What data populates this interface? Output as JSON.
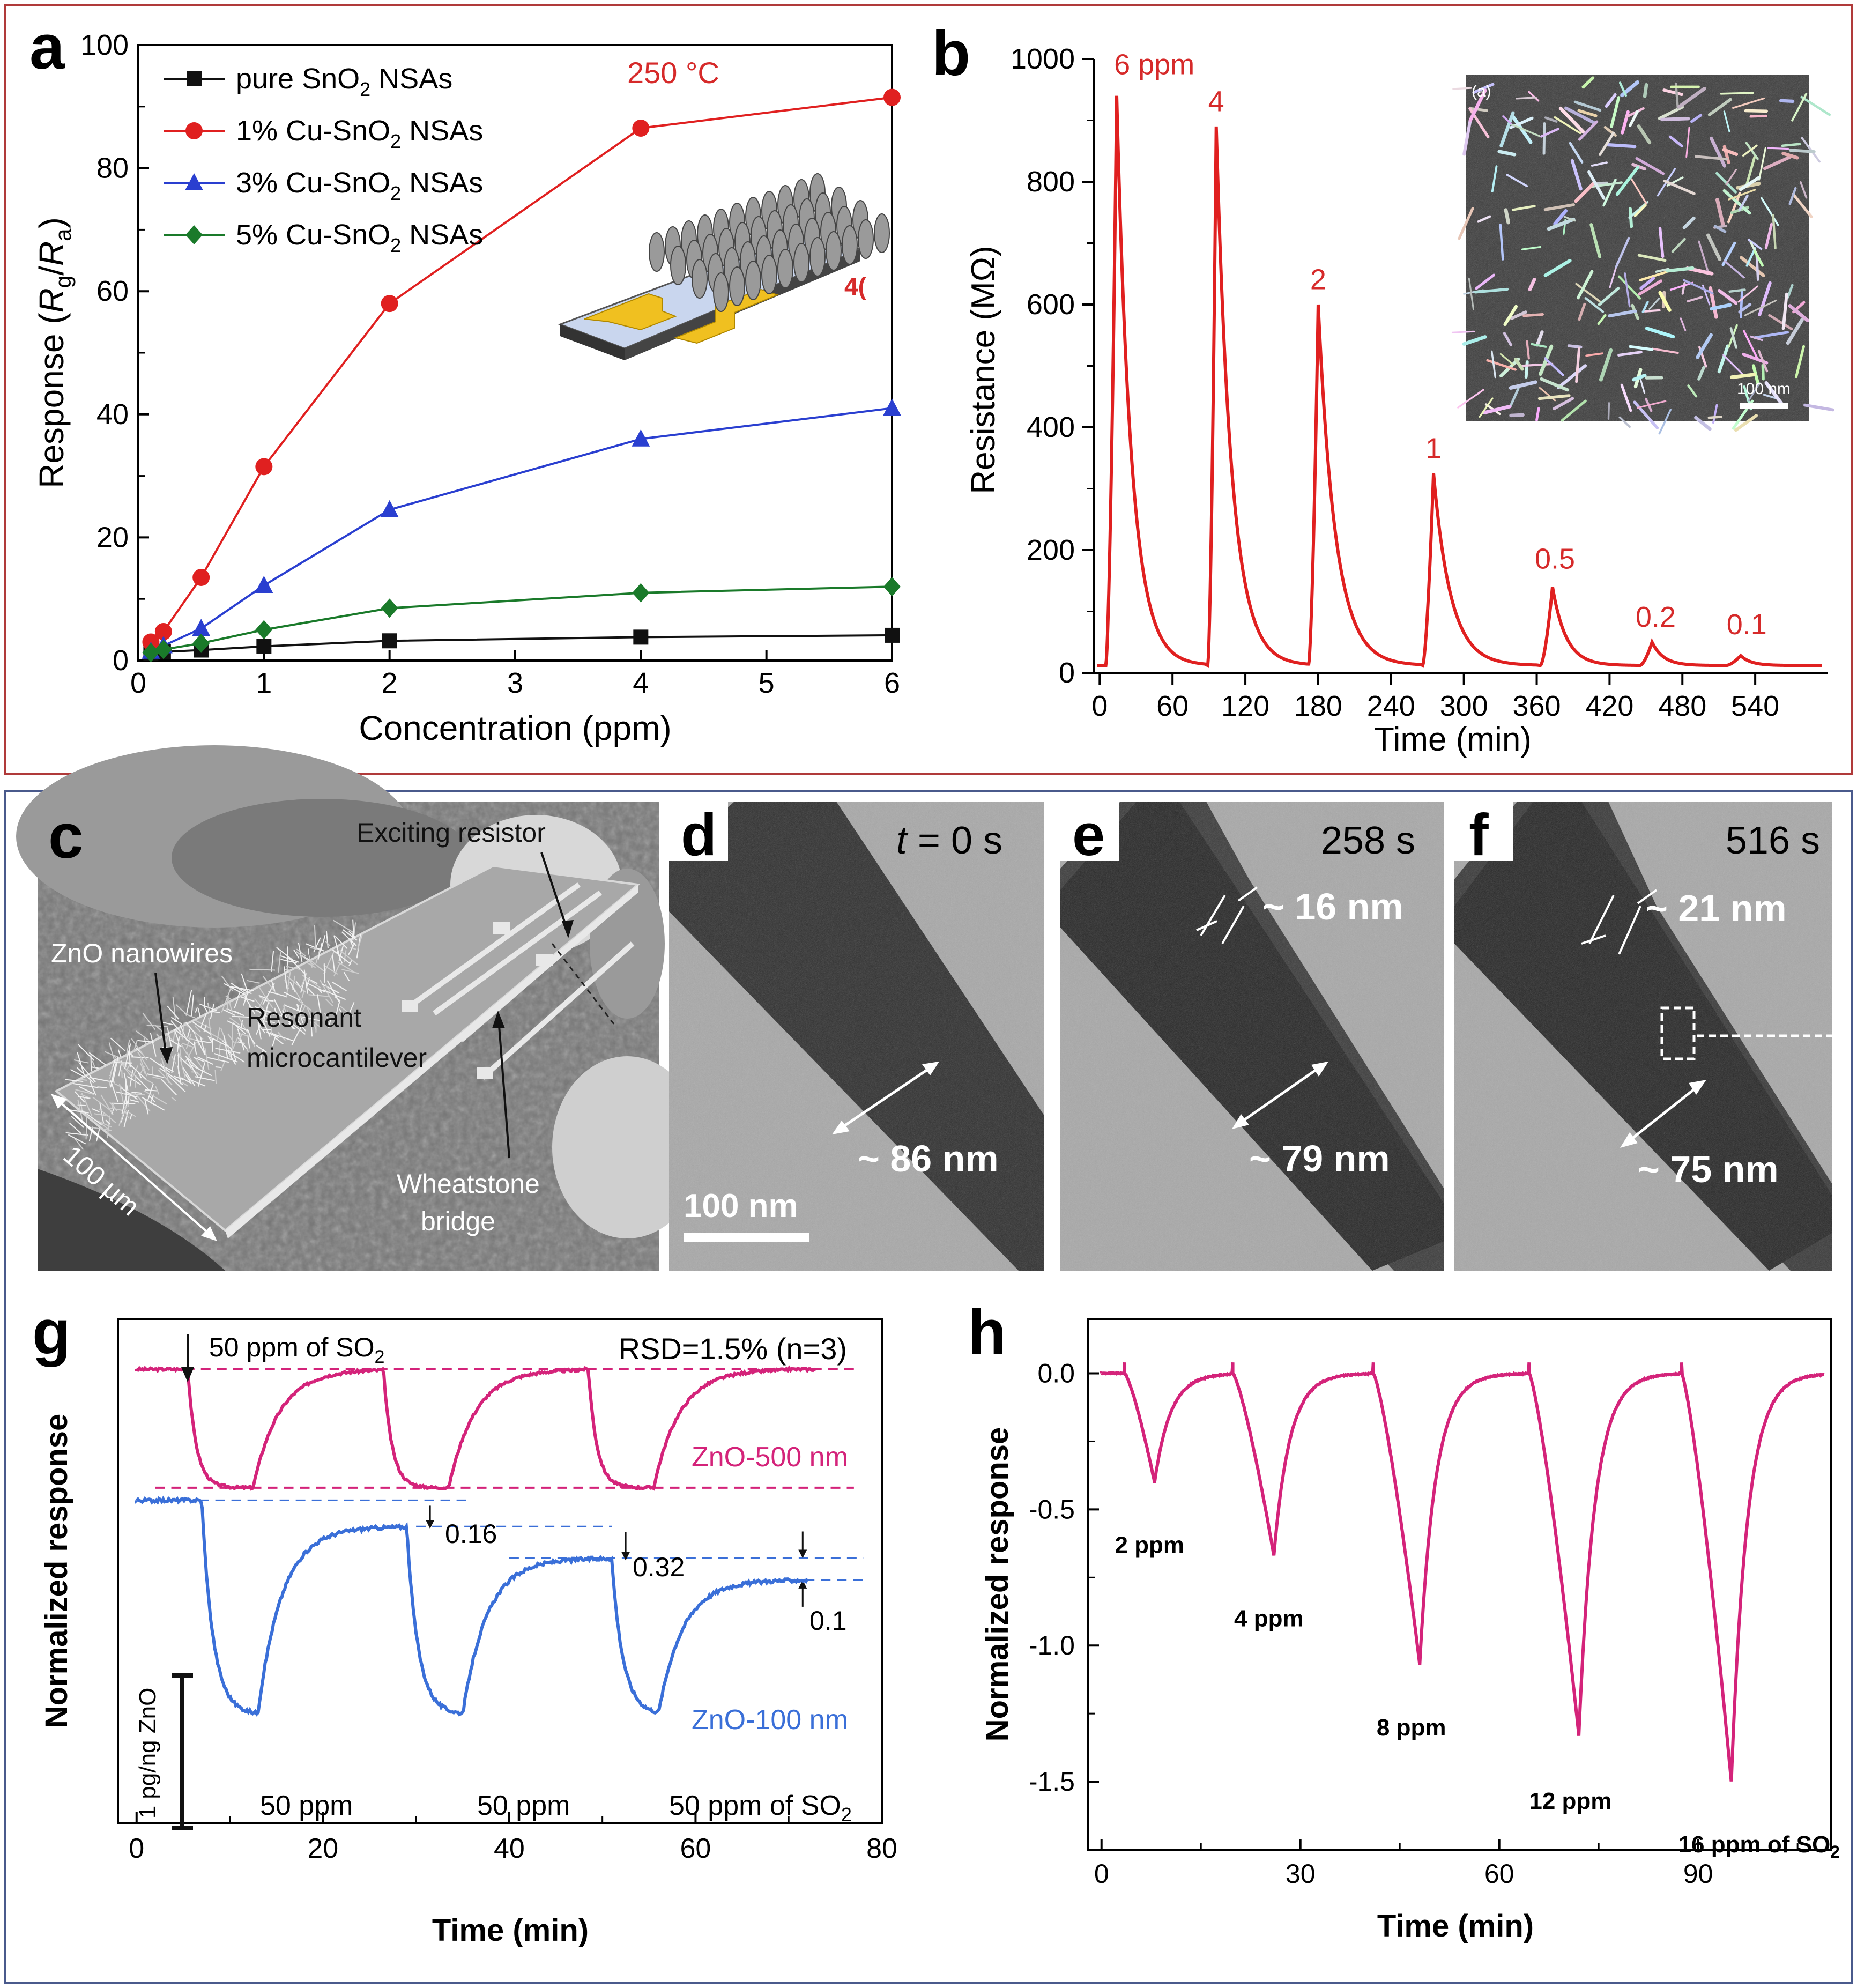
{
  "colors": {
    "top_frame": "#b03a3a",
    "bottom_frame": "#4a5a8c",
    "red": "#e02020",
    "blue": "#2a3fd0",
    "green": "#1a7a2a",
    "black": "#111111",
    "magenta": "#d4237a",
    "steel_blue": "#3a6fd8",
    "label_red": "#d62a2a"
  },
  "panels": {
    "a": {
      "letter": "a"
    },
    "b": {
      "letter": "b"
    },
    "c": {
      "letter": "c",
      "labels": {
        "exciting_resistor": "Exciting resistor",
        "zno_nanowires": "ZnO nanowires",
        "resonant_1": "Resonant",
        "resonant_2": "microcantilever",
        "wheatstone_1": "Wheatstone",
        "wheatstone_2": "bridge",
        "scale": "100 µm"
      }
    },
    "d": {
      "letter": "d",
      "time_italic": "t",
      "time_rest": " = 0 s",
      "width": "~ 86 nm",
      "scale": "100 nm"
    },
    "e": {
      "letter": "e",
      "time": "258 s",
      "shell": "~ 16 nm",
      "width": "~ 79 nm"
    },
    "f": {
      "letter": "f",
      "time": "516 s",
      "shell": "~ 21 nm",
      "width": "~ 75 nm"
    },
    "g": {
      "letter": "g"
    },
    "h": {
      "letter": "h"
    }
  },
  "chart_data": [
    {
      "id": "a",
      "type": "line",
      "title": "",
      "xlabel": "Concentration (ppm)",
      "ylabel_parts": [
        "Response (",
        "R",
        "g",
        "/",
        "R",
        "a",
        ")"
      ],
      "xlim": [
        0,
        6
      ],
      "ylim": [
        0,
        100
      ],
      "xticks": [
        0,
        1,
        2,
        3,
        4,
        5,
        6
      ],
      "yticks": [
        0,
        20,
        40,
        60,
        80,
        100
      ],
      "x": [
        0.1,
        0.2,
        0.5,
        1,
        2,
        4,
        6
      ],
      "series": [
        {
          "name": "pure SnO2 NSAs",
          "label_main": "pure SnO",
          "label_sub": "2",
          "label_tail": " NSAs",
          "color": "#111111",
          "marker": "square",
          "values": [
            1.2,
            1.4,
            1.7,
            2.3,
            3.2,
            3.8,
            4.1
          ]
        },
        {
          "name": "1% Cu-SnO2 NSAs",
          "label_main": "1% Cu-SnO",
          "label_sub": "2",
          "label_tail": " NSAs",
          "color": "#e02020",
          "marker": "circle",
          "values": [
            3.0,
            4.7,
            13.5,
            31.5,
            58,
            86.5,
            91.5
          ]
        },
        {
          "name": "3% Cu-SnO2 NSAs",
          "label_main": "3% Cu-SnO",
          "label_sub": "2",
          "label_tail": " NSAs",
          "color": "#2a3fd0",
          "marker": "triangle",
          "values": [
            1.5,
            2.4,
            5.2,
            12.2,
            24.5,
            36,
            41
          ]
        },
        {
          "name": "5% Cu-SnO2 NSAs",
          "label_main": "5% Cu-SnO",
          "label_sub": "2",
          "label_tail": " NSAs",
          "color": "#1a7a2a",
          "marker": "diamond",
          "values": [
            1.3,
            1.8,
            2.8,
            5.0,
            8.5,
            11,
            12
          ]
        }
      ],
      "annotations": [
        {
          "text": "250 °C",
          "x": 4.0,
          "y": 95
        },
        {
          "text": "4(",
          "x": 5.9,
          "y": 61
        }
      ]
    },
    {
      "id": "b",
      "type": "line",
      "xlabel": "Time (min)",
      "ylabel": "Resistance (MΩ)",
      "xlim": [
        -5,
        600
      ],
      "ylim": [
        0,
        1000
      ],
      "xticks": [
        0,
        60,
        120,
        180,
        240,
        300,
        360,
        420,
        480,
        540
      ],
      "yticks": [
        0,
        200,
        400,
        600,
        800,
        1000
      ],
      "series": [
        {
          "name": "resistance",
          "color": "#e02020"
        }
      ],
      "peaks": [
        {
          "start": 5,
          "x": 14,
          "y": 940,
          "end": 87,
          "label": "6 ppm",
          "lx": 45,
          "ly": 975
        },
        {
          "start": 89,
          "x": 96,
          "y": 890,
          "end": 172,
          "label": "4",
          "lx": 96,
          "ly": 915
        },
        {
          "start": 172,
          "x": 180,
          "y": 600,
          "end": 265,
          "label": "2",
          "lx": 180,
          "ly": 625
        },
        {
          "start": 266,
          "x": 275,
          "y": 325,
          "end": 360,
          "label": "1",
          "lx": 275,
          "ly": 350
        },
        {
          "start": 363,
          "x": 373,
          "y": 140,
          "end": 440,
          "label": "0.5",
          "lx": 375,
          "ly": 170
        },
        {
          "start": 445,
          "x": 455,
          "y": 50,
          "end": 512,
          "label": "0.2",
          "lx": 458,
          "ly": 75
        },
        {
          "start": 516,
          "x": 528,
          "y": 28,
          "end": 580,
          "label": "0.1",
          "lx": 533,
          "ly": 63
        }
      ],
      "baseline": 12,
      "inset": {
        "corner_label": "(a)",
        "scale_label": "100 nm"
      }
    },
    {
      "id": "g",
      "type": "line",
      "xlabel": "Time (min)",
      "ylabel": "Normalized response",
      "xlim": [
        -2,
        80
      ],
      "ylim": [
        0,
        100
      ],
      "xticks": [
        0,
        20,
        40,
        60,
        80
      ],
      "annotations": {
        "rsd": "RSD=1.5% (n=3)",
        "so2_main": "50 ppm of SO",
        "so2_sub": "2",
        "zno500": "ZnO-500 nm",
        "zno100": "ZnO-100 nm",
        "d016": "0.16",
        "d032": "0.32",
        "d01": "0.1",
        "p1": "50 ppm",
        "p2": "50 ppm",
        "p3_main": "50 ppm of SO",
        "p3_sub": "2",
        "scalebar": "1 pg/ng ZnO"
      },
      "series": [
        {
          "name": "ZnO-500 nm",
          "color": "#d4237a",
          "baseline": 90,
          "min": 66.5,
          "cycles": [
            {
              "on": 5.5,
              "off": 12.5
            },
            {
              "on": 26.5,
              "off": 33.5
            },
            {
              "on": 48.5,
              "off": 55.5
            }
          ],
          "end": 73
        },
        {
          "name": "ZnO-100 nm",
          "color": "#3a6fd8",
          "levels": [
            64,
            58.8,
            52.5,
            48.2
          ],
          "min": 21.5,
          "cycles": [
            {
              "on": 7,
              "off": 13
            },
            {
              "on": 29,
              "off": 35
            },
            {
              "on": 51,
              "off": 56
            }
          ],
          "end": 72
        }
      ]
    },
    {
      "id": "h",
      "type": "line",
      "xlabel": "Time (min)",
      "ylabel": "Normalized response",
      "xlim": [
        -2,
        110
      ],
      "ylim": [
        -1.75,
        0.2
      ],
      "xticks": [
        0,
        30,
        60,
        90
      ],
      "yticks": [
        0.0,
        -0.5,
        -1.0,
        -1.5
      ],
      "ytick_labels": [
        "0.0",
        "-0.5",
        "-1.0",
        "-1.5"
      ],
      "series": [
        {
          "name": "response",
          "color": "#d4237a"
        }
      ],
      "peaks": [
        {
          "on": 3.5,
          "x": 8,
          "y": -0.4,
          "off": 19.5,
          "label": "2 ppm",
          "lx": 2,
          "ly": -0.66
        },
        {
          "on": 19.8,
          "x": 26,
          "y": -0.67,
          "off": 40.5,
          "label": "4 ppm",
          "lx": 20,
          "ly": -0.93
        },
        {
          "on": 41,
          "x": 48,
          "y": -1.07,
          "off": 64,
          "label": "8 ppm",
          "lx": 41.5,
          "ly": -1.33
        },
        {
          "on": 64.5,
          "x": 72,
          "y": -1.33,
          "off": 87,
          "label": "12 ppm",
          "lx": 64.5,
          "ly": -1.6
        },
        {
          "on": 87.5,
          "x": 95,
          "y": -1.5,
          "off": 109,
          "label_main": "16 ppm of SO",
          "label_sub": "2",
          "lx": 87,
          "ly": -1.76
        }
      ]
    }
  ]
}
